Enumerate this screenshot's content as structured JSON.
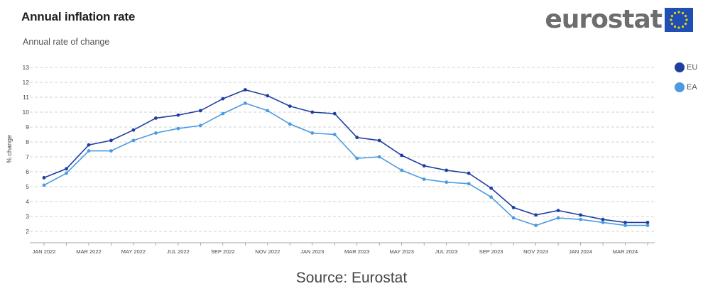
{
  "header": {
    "title": "Annual inflation rate",
    "subtitle": "Annual rate of change"
  },
  "logo": {
    "wordmark": "eurostat"
  },
  "source": "Source: Eurostat",
  "colors": {
    "eu": "#1f3fa0",
    "ea": "#4a9be0",
    "grid": "#c4c4c4",
    "axis_text": "#444444"
  },
  "chart_data": {
    "type": "line",
    "title": "Annual inflation rate",
    "subtitle": "Annual rate of change",
    "xlabel": "",
    "ylabel": "% change",
    "ylim": [
      2,
      13
    ],
    "yticks": [
      2,
      3,
      4,
      5,
      6,
      7,
      8,
      9,
      10,
      11,
      12,
      13
    ],
    "grid": "horizontal dashed",
    "legend_position": "right",
    "x": [
      "2022-01",
      "2022-02",
      "2022-03",
      "2022-04",
      "2022-05",
      "2022-06",
      "2022-07",
      "2022-08",
      "2022-09",
      "2022-10",
      "2022-11",
      "2022-12",
      "2023-01",
      "2023-02",
      "2023-03",
      "2023-04",
      "2023-05",
      "2023-06",
      "2023-07",
      "2023-08",
      "2023-09",
      "2023-10",
      "2023-11",
      "2023-12",
      "2024-01",
      "2024-02",
      "2024-03",
      "2024-04"
    ],
    "xtick_labels": [
      "JAN 2022",
      "MAR 2022",
      "MAY 2022",
      "JUL 2022",
      "SEP 2022",
      "NOV 2022",
      "JAN 2023",
      "MAR 2023",
      "MAY 2023",
      "JUL 2023",
      "SEP 2023",
      "NOV 2023",
      "JAN 2024",
      "MAR 2024"
    ],
    "series": [
      {
        "name": "EU",
        "values": [
          5.6,
          6.2,
          7.8,
          8.1,
          8.8,
          9.6,
          9.8,
          10.1,
          10.9,
          11.5,
          11.1,
          10.4,
          10.0,
          9.9,
          8.3,
          8.1,
          7.1,
          6.4,
          6.1,
          5.9,
          4.9,
          3.6,
          3.1,
          3.4,
          3.1,
          2.8,
          2.6,
          2.6
        ]
      },
      {
        "name": "EA",
        "values": [
          5.1,
          5.9,
          7.4,
          7.4,
          8.1,
          8.6,
          8.9,
          9.1,
          9.9,
          10.6,
          10.1,
          9.2,
          8.6,
          8.5,
          6.9,
          7.0,
          6.1,
          5.5,
          5.3,
          5.2,
          4.3,
          2.9,
          2.4,
          2.9,
          2.8,
          2.6,
          2.4,
          2.4
        ]
      }
    ]
  }
}
